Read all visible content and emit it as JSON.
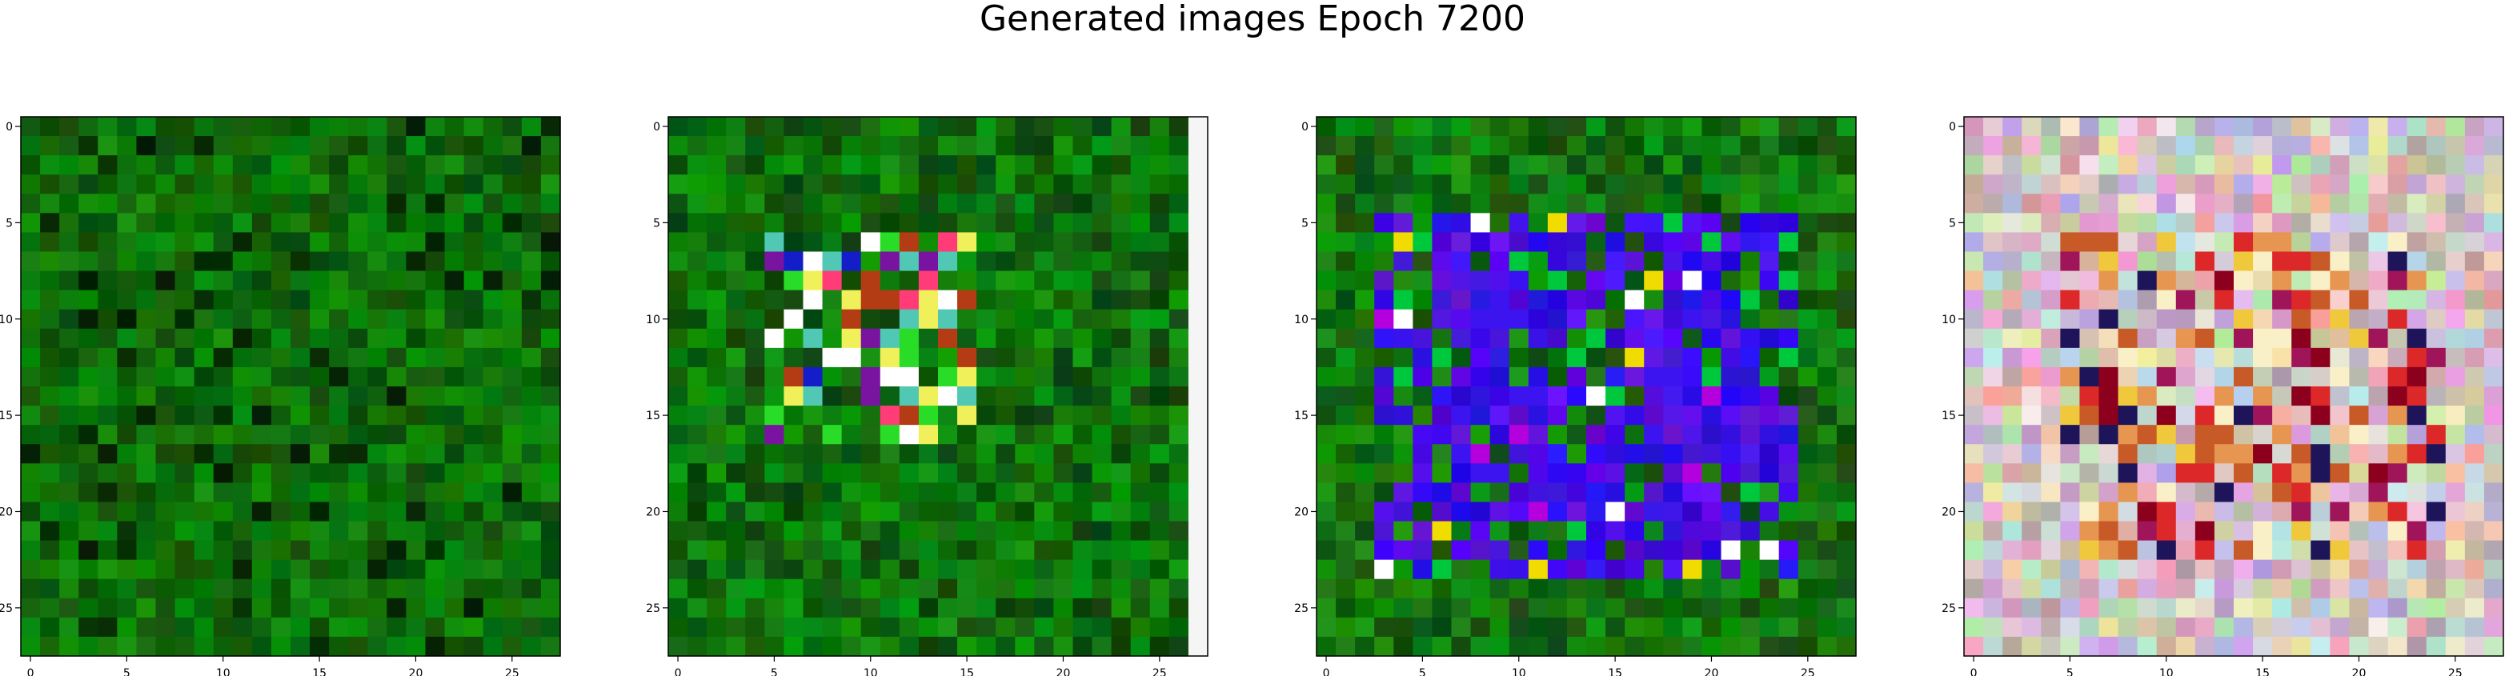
{
  "figure": {
    "title": "Generated images Epoch 7200"
  },
  "chart_data": [
    {
      "type": "heatmap",
      "render": "rgb-image",
      "grid_size": [
        28,
        28
      ],
      "xlim": [
        -0.5,
        27.5
      ],
      "ylim": [
        27.5,
        -0.5
      ],
      "xticks": [
        0,
        5,
        10,
        15,
        20,
        25
      ],
      "yticks": [
        0,
        5,
        10,
        15,
        20,
        25
      ],
      "seed": 7,
      "palette": "green-noise",
      "description_colors": [
        "#0b7a0b",
        "#1f8f1a",
        "#0a4d0a"
      ]
    },
    {
      "type": "heatmap",
      "render": "rgb-image",
      "grid_size": [
        28,
        28
      ],
      "xlim": [
        -0.5,
        27.5
      ],
      "ylim": [
        27.5,
        -0.5
      ],
      "xticks": [
        0,
        5,
        10,
        15,
        20,
        25
      ],
      "yticks": [
        0,
        5,
        10,
        15,
        20,
        25
      ],
      "seed": 19,
      "palette": "green-center-blob",
      "description_colors": [
        "#0b7a0b",
        "#1a1acc",
        "#ff3366",
        "#ffff66",
        "#ffffff"
      ]
    },
    {
      "type": "heatmap",
      "render": "rgb-image",
      "grid_size": [
        28,
        28
      ],
      "xlim": [
        -0.5,
        27.5
      ],
      "ylim": [
        27.5,
        -0.5
      ],
      "xticks": [
        0,
        5,
        10,
        15,
        20,
        25
      ],
      "yticks": [
        0,
        5,
        10,
        15,
        20,
        25
      ],
      "seed": 31,
      "palette": "green-blue-frame",
      "description_colors": [
        "#1a7a1a",
        "#3a1aff",
        "#0000ee",
        "#ffd000"
      ]
    },
    {
      "type": "heatmap",
      "render": "rgb-image",
      "grid_size": [
        28,
        28
      ],
      "xlim": [
        -0.5,
        27.5
      ],
      "ylim": [
        27.5,
        -0.5
      ],
      "xticks": [
        0,
        5,
        10,
        15,
        20,
        25
      ],
      "yticks": [
        0,
        5,
        10,
        15,
        20,
        25
      ],
      "seed": 47,
      "palette": "pastel-noise",
      "description_colors": [
        "#e6b8c8",
        "#c8d8b0",
        "#cc2222",
        "#dd8844",
        "#aaccdd"
      ]
    }
  ]
}
